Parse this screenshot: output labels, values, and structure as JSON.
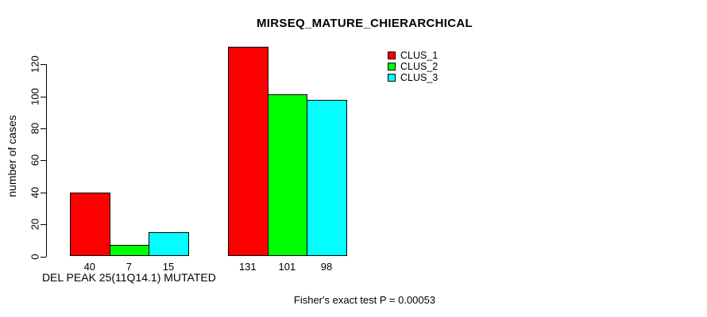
{
  "chart_data": {
    "type": "bar",
    "title": "MIRSEQ_MATURE_CHIERARCHICAL",
    "xlabel": "",
    "ylabel": "number of cases",
    "ylim": [
      0,
      135
    ],
    "yticks": [
      0,
      20,
      40,
      60,
      80,
      100,
      120
    ],
    "grid": false,
    "legend_position": "top-right",
    "categories": [
      "DEL PEAK 25(11Q14.1) MUTATED",
      ""
    ],
    "series": [
      {
        "name": "CLUS_1",
        "color": "#ff0000",
        "values": [
          40,
          131
        ]
      },
      {
        "name": "CLUS_2",
        "color": "#00ff00",
        "values": [
          7,
          101
        ]
      },
      {
        "name": "CLUS_3",
        "color": "#00ffff",
        "values": [
          15,
          98
        ]
      }
    ],
    "bar_value_labels": [
      [
        40,
        7,
        15
      ],
      [
        131,
        101,
        98
      ]
    ],
    "annotation": "Fisher's exact test P = 0.00053"
  }
}
